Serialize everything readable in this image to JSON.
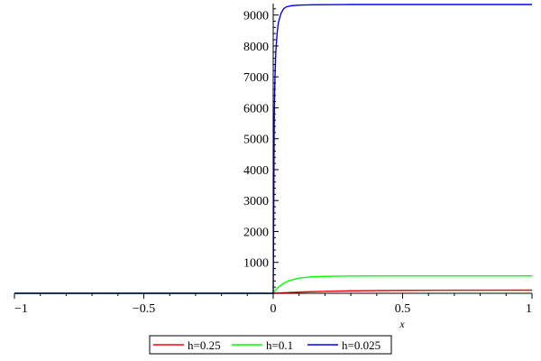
{
  "chart_data": {
    "type": "line",
    "title": "",
    "xlabel": "x",
    "ylabel": "",
    "xlim": [
      -1,
      1
    ],
    "ylim": [
      0,
      9300
    ],
    "x_ticks": [
      -1,
      -0.5,
      0,
      0.5,
      1
    ],
    "x_tick_labels": [
      "−1",
      "−0.5",
      "0",
      "0.5",
      "1"
    ],
    "y_ticks": [
      1000,
      2000,
      3000,
      4000,
      5000,
      6000,
      7000,
      8000,
      9000
    ],
    "y_tick_labels": [
      "1000",
      "2000",
      "3000",
      "4000",
      "5000",
      "6000",
      "7000",
      "8000",
      "9000"
    ],
    "grid": false,
    "legend_position": "bottom",
    "series": [
      {
        "name": "h=0.25",
        "color": "#ff0000",
        "x": [
          -1,
          0,
          0.05,
          0.1,
          0.2,
          0.3,
          0.5,
          0.7,
          1
        ],
        "y": [
          0,
          0,
          20,
          40,
          65,
          80,
          95,
          100,
          102
        ]
      },
      {
        "name": "h=0.1",
        "color": "#00ff00",
        "x": [
          -1,
          0,
          0.01,
          0.02,
          0.04,
          0.06,
          0.08,
          0.1,
          0.15,
          0.2,
          0.3,
          0.5,
          0.7,
          1
        ],
        "y": [
          0,
          0,
          110,
          200,
          320,
          400,
          450,
          490,
          535,
          550,
          560,
          565,
          565,
          565
        ]
      },
      {
        "name": "h=0.025",
        "color": "#0000ff",
        "x": [
          -1,
          0,
          0.002,
          0.004,
          0.006,
          0.008,
          0.01,
          0.015,
          0.02,
          0.03,
          0.04,
          0.05,
          0.07,
          0.1,
          0.15,
          0.2,
          0.3,
          0.5,
          0.7,
          1
        ],
        "y": [
          0,
          0,
          2500,
          5600,
          6700,
          7300,
          7800,
          8400,
          8750,
          9050,
          9200,
          9260,
          9300,
          9320,
          9330,
          9335,
          9340,
          9340,
          9340,
          9340
        ]
      }
    ]
  }
}
